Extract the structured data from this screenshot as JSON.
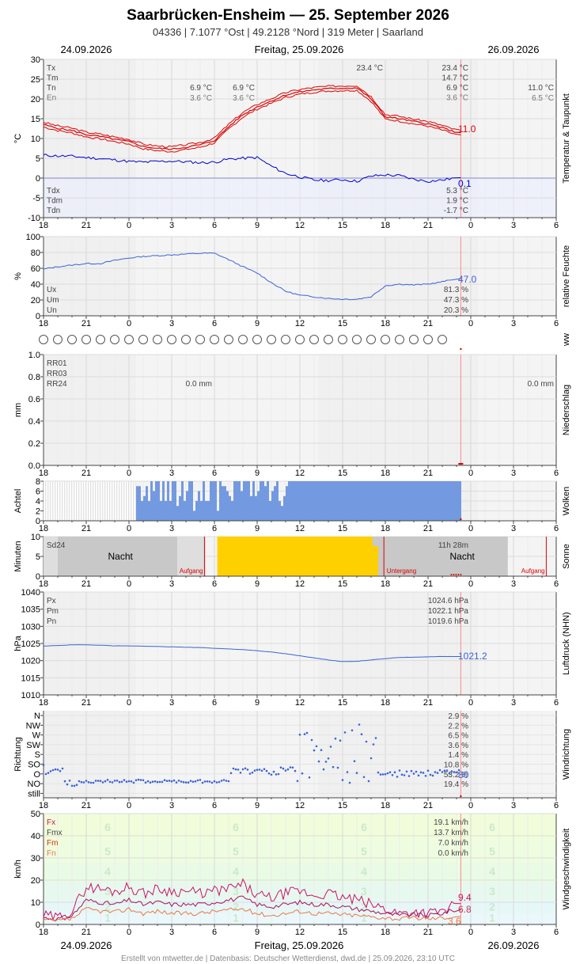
{
  "header": {
    "title": "Saarbrücken-Ensheim  —  25. September 2026",
    "subtitle": "04336  |  7.1077 °Ost  |  49.2128 °Nord  |  319 Meter  |  Saarland",
    "date_left": "24.09.2026",
    "date_center": "Freitag, 25.09.2026",
    "date_right": "26.09.2026",
    "footer": "Erstellt von mtwetter.de | Datenbasis: Deutscher Wetterdienst, dwd.de | 25.09.2026, 23:10 UTC"
  },
  "colors": {
    "red": "#dd0000",
    "blue": "#0000cc",
    "lblue": "#3a63d8",
    "cloud": "#7399e0",
    "sun": "#ffd000",
    "grid": "#dddddd",
    "bg": "#f4f4f4"
  },
  "x_ticks": [
    "18",
    "21",
    "0",
    "3",
    "6",
    "9",
    "12",
    "15",
    "18",
    "21",
    "0",
    "3",
    "6"
  ],
  "panels": {
    "temp": {
      "ylabel": "°C",
      "side": "Temperatur & Taupunkt",
      "ylim": [
        -10,
        30
      ],
      "yticks": [
        "30",
        "25",
        "20",
        "15",
        "10",
        "5",
        "0",
        "-5",
        "-10"
      ],
      "labels_top": [
        "Tx",
        "Tm",
        "Tn",
        "En"
      ],
      "values_top": [
        "23.4 °C",
        "14.7 °C",
        "6.9 °C",
        "3.6 °C"
      ],
      "labels_bottom": [
        "Tdx",
        "Tdm",
        "Tdn"
      ],
      "values_bottom": [
        "5.3 °C",
        "1.9 °C",
        "-1.7 °C"
      ],
      "prev_tn": "6.9 °C",
      "prev_en": "3.6 °C",
      "tn_mid": "6.9 °C",
      "en_mid": "3.6 °C",
      "max_label": "23.4 °C",
      "next_tn": "11.0 °C",
      "next_en": "6.5 °C",
      "current_temp": "11.0",
      "current_dew": "0.1"
    },
    "hum": {
      "ylabel": "%",
      "side": "relative Feuchte",
      "ylim": [
        0,
        100
      ],
      "yticks": [
        "100",
        "80",
        "60",
        "40",
        "20",
        "0"
      ],
      "labels": [
        "Ux",
        "Um",
        "Un"
      ],
      "values": [
        "81.3 %",
        "47.3 %",
        "20.3 %"
      ],
      "current": "47.0"
    },
    "ww": {
      "side": "ww",
      "count": 29
    },
    "rain": {
      "ylabel": "mm",
      "side": "Niederschlag",
      "ylim": [
        0,
        1
      ],
      "yticks": [
        "1.0",
        "0.8",
        "0.6",
        "0.4",
        "0.2",
        "0.0"
      ],
      "labels": [
        "RR01",
        "RR03",
        "RR24"
      ],
      "day_total": "0.0 mm",
      "next_total": "0.0 mm"
    },
    "cloud": {
      "ylabel": "Achtel",
      "side": "Wolken",
      "yticks": [
        "8",
        "6",
        "4",
        "2",
        "0"
      ]
    },
    "sun": {
      "ylabel": "Minuten",
      "side": "Sonne",
      "yticks": [
        "10",
        "5",
        "0"
      ],
      "label": "Sd24",
      "duration": "11h 28m",
      "night": "Nacht",
      "rise": "Aufgang",
      "set": "Untergang"
    },
    "press": {
      "ylabel": "hPa",
      "side": "Luftdruck (NHN)",
      "ylim": [
        1010,
        1040
      ],
      "yticks": [
        "1040",
        "1035",
        "1030",
        "1025",
        "1020",
        "1015",
        "1010"
      ],
      "labels": [
        "Px",
        "Pm",
        "Pn"
      ],
      "values": [
        "1024.6 hPa",
        "1022.1 hPa",
        "1019.6 hPa"
      ],
      "current": "1021.2"
    },
    "wdir": {
      "ylabel": "Richtung",
      "side": "Windrichtung",
      "dirs": [
        "N",
        "NW",
        "W",
        "SW",
        "S",
        "SO",
        "O",
        "NO",
        "still"
      ],
      "pcts": [
        "2.9 %",
        "2.2 %",
        "6.5 %",
        "3.6 %",
        "1.4 %",
        "10.8 %",
        "53.2 %",
        "19.4 %",
        ""
      ],
      "current": "80"
    },
    "wspd": {
      "ylabel": "km/h",
      "side": "Windgeschwindigkeit",
      "ylim": [
        0,
        50
      ],
      "yticks": [
        "50",
        "40",
        "30",
        "20",
        "10",
        "0"
      ],
      "labels": [
        "Fx",
        "Fmx",
        "Fm",
        "Fn"
      ],
      "values": [
        "19.1 km/h",
        "13.7 km/h",
        "7.0 km/h",
        "0.0 km/h"
      ],
      "current_fx": "9.4",
      "current_fmx": "6.8",
      "current_fm": "3.6",
      "bft": [
        "1",
        "2",
        "3",
        "4",
        "5",
        "6"
      ]
    }
  },
  "chart_data": [
    {
      "type": "line",
      "xlabel": "",
      "ylabel": "°C",
      "ylim": [
        -10,
        30
      ],
      "x": [
        "18",
        "19",
        "20",
        "21",
        "22",
        "23",
        "0",
        "1",
        "2",
        "3",
        "4",
        "5",
        "6",
        "7",
        "8",
        "9",
        "10",
        "11",
        "12",
        "13",
        "14",
        "15",
        "16",
        "17",
        "18",
        "19",
        "20",
        "21",
        "22",
        "23"
      ],
      "series": [
        {
          "name": "Tx",
          "values": [
            13.5,
            12.6,
            12.0,
            11.0,
            10.5,
            9.8,
            9.2,
            8.0,
            7.5,
            7.3,
            7.8,
            8.4,
            9.5,
            13.0,
            16.0,
            18.0,
            19.5,
            21.0,
            21.8,
            22.3,
            22.6,
            22.7,
            22.8,
            20.0,
            15.5,
            15.0,
            14.3,
            13.7,
            12.7,
            11.5
          ]
        },
        {
          "name": "Tdx",
          "values": [
            5.8,
            5.6,
            5.5,
            5.2,
            4.9,
            4.6,
            4.2,
            4.0,
            4.2,
            4.3,
            4.1,
            3.9,
            4.0,
            4.8,
            5.0,
            5.2,
            3.0,
            1.2,
            0.3,
            -0.5,
            -0.6,
            -0.4,
            -0.8,
            0.5,
            0.8,
            0.6,
            -0.3,
            -0.8,
            -0.5,
            0.1
          ]
        }
      ]
    },
    {
      "type": "line",
      "xlabel": "",
      "ylabel": "%",
      "ylim": [
        0,
        100
      ],
      "x": [
        "18",
        "19",
        "20",
        "21",
        "22",
        "23",
        "0",
        "1",
        "2",
        "3",
        "4",
        "5",
        "6",
        "7",
        "8",
        "9",
        "10",
        "11",
        "12",
        "13",
        "14",
        "15",
        "16",
        "17",
        "18",
        "19",
        "20",
        "21",
        "22",
        "23"
      ],
      "series": [
        {
          "name": "Um",
          "values": [
            59,
            62,
            64,
            66,
            66,
            70,
            73,
            75,
            76,
            77,
            78,
            79,
            79,
            71,
            62,
            54,
            42,
            31,
            26,
            24,
            22,
            21,
            21,
            24,
            38,
            40,
            39,
            40,
            43,
            47
          ]
        }
      ]
    },
    {
      "type": "line",
      "xlabel": "",
      "ylabel": "hPa",
      "ylim": [
        1010,
        1040
      ],
      "x": [
        "18",
        "19",
        "20",
        "21",
        "22",
        "23",
        "0",
        "1",
        "2",
        "3",
        "4",
        "5",
        "6",
        "7",
        "8",
        "9",
        "10",
        "11",
        "12",
        "13",
        "14",
        "15",
        "16",
        "17",
        "18",
        "19",
        "20",
        "21",
        "22",
        "23"
      ],
      "series": [
        {
          "name": "Pm",
          "values": [
            1024.2,
            1024.4,
            1024.6,
            1024.6,
            1024.5,
            1024.3,
            1024.3,
            1024.2,
            1024.1,
            1024.0,
            1023.9,
            1023.8,
            1023.6,
            1023.4,
            1023.2,
            1022.9,
            1022.5,
            1022.0,
            1021.4,
            1020.8,
            1020.2,
            1019.7,
            1019.8,
            1020.2,
            1020.6,
            1020.9,
            1021.0,
            1021.1,
            1021.2,
            1021.2
          ]
        }
      ]
    },
    {
      "type": "line",
      "xlabel": "",
      "ylabel": "km/h",
      "ylim": [
        0,
        50
      ],
      "x": [
        "18",
        "19",
        "20",
        "21",
        "22",
        "23",
        "0",
        "1",
        "2",
        "3",
        "4",
        "5",
        "6",
        "7",
        "8",
        "9",
        "10",
        "11",
        "12",
        "13",
        "14",
        "15",
        "16",
        "17",
        "18",
        "19",
        "20",
        "21",
        "22",
        "23"
      ],
      "series": [
        {
          "name": "Fx",
          "values": [
            4.0,
            3.0,
            6.0,
            17.0,
            16.0,
            15.0,
            17.0,
            14.0,
            16.0,
            15.0,
            15.0,
            14.0,
            15.0,
            16.0,
            18.0,
            13.0,
            12.0,
            14.0,
            15.0,
            13.0,
            14.0,
            12.0,
            11.0,
            9.0,
            7.0,
            5.0,
            6.0,
            5.0,
            6.0,
            9.4
          ]
        },
        {
          "name": "Fmx",
          "values": [
            3.0,
            2.5,
            4.0,
            11.0,
            10.0,
            9.0,
            11.0,
            9.0,
            10.0,
            9.0,
            9.0,
            9.0,
            10.0,
            11.0,
            12.0,
            9.0,
            8.0,
            9.0,
            10.0,
            9.0,
            9.0,
            8.0,
            7.0,
            6.0,
            5.0,
            4.0,
            4.5,
            4.0,
            5.0,
            6.8
          ]
        },
        {
          "name": "Fm",
          "values": [
            2.0,
            1.5,
            2.5,
            7.0,
            6.0,
            5.5,
            7.0,
            5.0,
            6.0,
            5.0,
            5.0,
            5.0,
            6.0,
            6.5,
            7.0,
            5.0,
            4.0,
            5.0,
            6.0,
            5.0,
            5.0,
            4.5,
            4.0,
            3.5,
            3.0,
            2.5,
            3.0,
            2.5,
            3.0,
            3.6
          ]
        }
      ]
    }
  ]
}
